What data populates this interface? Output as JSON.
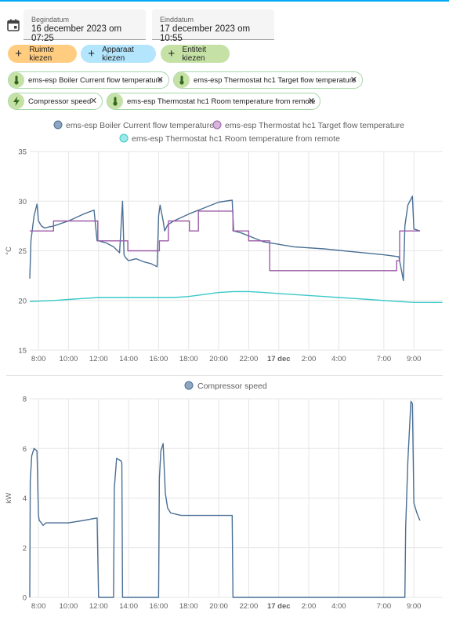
{
  "dates": {
    "start_label": "Begindatum",
    "start_value": "16 december 2023 om 07:25",
    "end_label": "Einddatum",
    "end_value": "17 december 2023 om 10:55"
  },
  "pickers": {
    "area": "Ruimte kiezen",
    "device": "Apparaat kiezen",
    "entity": "Entiteit kiezen"
  },
  "chips": [
    "ems-esp Boiler Current flow temperature",
    "ems-esp Thermostat hc1 Target flow temperature",
    "Compressor speed",
    "ems-esp Thermostat hc1 Room temperature from remote"
  ],
  "colors": {
    "flow": "#4a6f94",
    "target": "#9c5ba8",
    "room": "#3cc8c8",
    "compressor": "#4a6f94",
    "area_chip": "#ffcc80",
    "device_chip": "#b3e5fc",
    "entity_chip": "#c5e1a5"
  },
  "chart_data": [
    {
      "type": "line",
      "ylabel": "°C",
      "ylim": [
        15,
        35
      ],
      "yticks": [
        "35",
        "30",
        "25",
        "20",
        "15"
      ],
      "xticks": [
        "8:00",
        "10:00",
        "12:00",
        "14:00",
        "16:00",
        "18:00",
        "20:00",
        "22:00",
        "17 dec",
        "2:00",
        "4:00",
        "7:00",
        "9:00"
      ],
      "x_unit": "hours since 16 Dec 00:00",
      "series": [
        {
          "name": "ems-esp Boiler Current flow temperature",
          "x": [
            7.42,
            7.5,
            7.7,
            7.9,
            8.0,
            8.2,
            8.4,
            8.7,
            9.0,
            10.0,
            11.0,
            11.7,
            11.9,
            12.0,
            12.5,
            13.0,
            13.4,
            13.6,
            13.7,
            13.8,
            14.0,
            14.5,
            15.0,
            15.5,
            15.9,
            16.0,
            16.1,
            16.3,
            16.4,
            16.6,
            17.0,
            18.0,
            19.0,
            20.0,
            20.9,
            21.0,
            21.5,
            22.0,
            23.0,
            1.0,
            3.0,
            5.0,
            7.0,
            8.0,
            8.3,
            8.4,
            8.6,
            8.9,
            9.0,
            9.2,
            9.4
          ],
          "x_note": "values after 21.0 continue on 17 dec",
          "values": [
            22.2,
            26.0,
            28.5,
            29.7,
            28.0,
            27.5,
            27.3,
            27.4,
            27.5,
            28.0,
            28.7,
            29.1,
            26.0,
            26.0,
            25.8,
            25.4,
            24.8,
            30.0,
            24.6,
            24.3,
            24.0,
            24.2,
            23.9,
            23.7,
            23.4,
            28.5,
            29.6,
            28.0,
            27.0,
            27.6,
            28.0,
            28.7,
            29.3,
            29.9,
            30.1,
            27.0,
            26.8,
            26.5,
            25.9,
            25.4,
            25.2,
            24.9,
            24.6,
            24.4,
            22.0,
            27.5,
            29.6,
            30.5,
            27.2,
            27.1,
            27.0
          ]
        },
        {
          "name": "ems-esp Thermostat hc1 Target flow temperature",
          "x": [
            7.42,
            9.0,
            9.0,
            11.95,
            11.95,
            13.95,
            13.95,
            16.05,
            16.05,
            16.65,
            16.65,
            18.05,
            18.05,
            18.65,
            18.65,
            20.95,
            20.95,
            22.0,
            22.0,
            23.4,
            23.4,
            7.85,
            7.85,
            8.05,
            8.05,
            9.4
          ],
          "values": [
            27,
            27,
            28,
            28,
            26,
            26,
            25,
            25,
            26,
            26,
            28,
            28,
            27,
            27,
            29,
            29,
            27,
            27,
            26,
            26,
            23,
            23,
            24,
            24,
            27,
            27
          ]
        },
        {
          "name": "ems-esp Thermostat hc1 Room temperature from remote",
          "x": [
            7.42,
            9.0,
            10.0,
            11.0,
            12.0,
            14.0,
            16.0,
            17.0,
            18.0,
            19.0,
            20.0,
            21.0,
            22.0,
            23.0,
            0.0,
            1.0,
            2.0,
            3.0,
            4.0,
            5.0,
            6.0,
            7.0,
            8.0,
            9.0,
            10.0,
            10.9
          ],
          "values": [
            19.9,
            20.0,
            20.1,
            20.2,
            20.3,
            20.3,
            20.3,
            20.3,
            20.4,
            20.6,
            20.8,
            20.9,
            20.9,
            20.8,
            20.7,
            20.6,
            20.5,
            20.4,
            20.3,
            20.2,
            20.1,
            20.0,
            19.9,
            19.8,
            19.8,
            19.8
          ]
        }
      ]
    },
    {
      "type": "line",
      "ylabel": "kW",
      "ylim": [
        0,
        8
      ],
      "yticks": [
        "8",
        "6",
        "4",
        "2",
        "0"
      ],
      "xticks": [
        "8:00",
        "10:00",
        "12:00",
        "14:00",
        "16:00",
        "18:00",
        "20:00",
        "22:00",
        "17 dec",
        "2:00",
        "4:00",
        "7:00",
        "9:00"
      ],
      "series": [
        {
          "name": "Compressor speed",
          "x": [
            7.42,
            7.45,
            7.55,
            7.7,
            7.9,
            8.0,
            8.05,
            8.2,
            8.3,
            8.5,
            9.0,
            10.0,
            11.0,
            11.9,
            12.0,
            12.05,
            13.0,
            13.05,
            13.2,
            13.5,
            13.55,
            13.6,
            16.0,
            16.05,
            16.15,
            16.3,
            16.45,
            16.6,
            16.8,
            17.5,
            18.0,
            19.0,
            20.0,
            20.9,
            20.95,
            8.4,
            8.45,
            8.6,
            8.8,
            8.9,
            9.0,
            9.2,
            9.4
          ],
          "values": [
            0,
            4.7,
            5.7,
            6.0,
            5.9,
            3.3,
            3.1,
            3.0,
            2.9,
            3.0,
            3.0,
            3.0,
            3.1,
            3.2,
            0,
            0,
            0,
            4.4,
            5.6,
            5.5,
            5.4,
            0,
            0,
            4.8,
            5.9,
            6.2,
            4.2,
            3.6,
            3.4,
            3.3,
            3.3,
            3.3,
            3.3,
            3.3,
            0,
            0,
            2.8,
            5.5,
            7.9,
            7.8,
            3.8,
            3.4,
            3.1
          ]
        }
      ]
    }
  ]
}
